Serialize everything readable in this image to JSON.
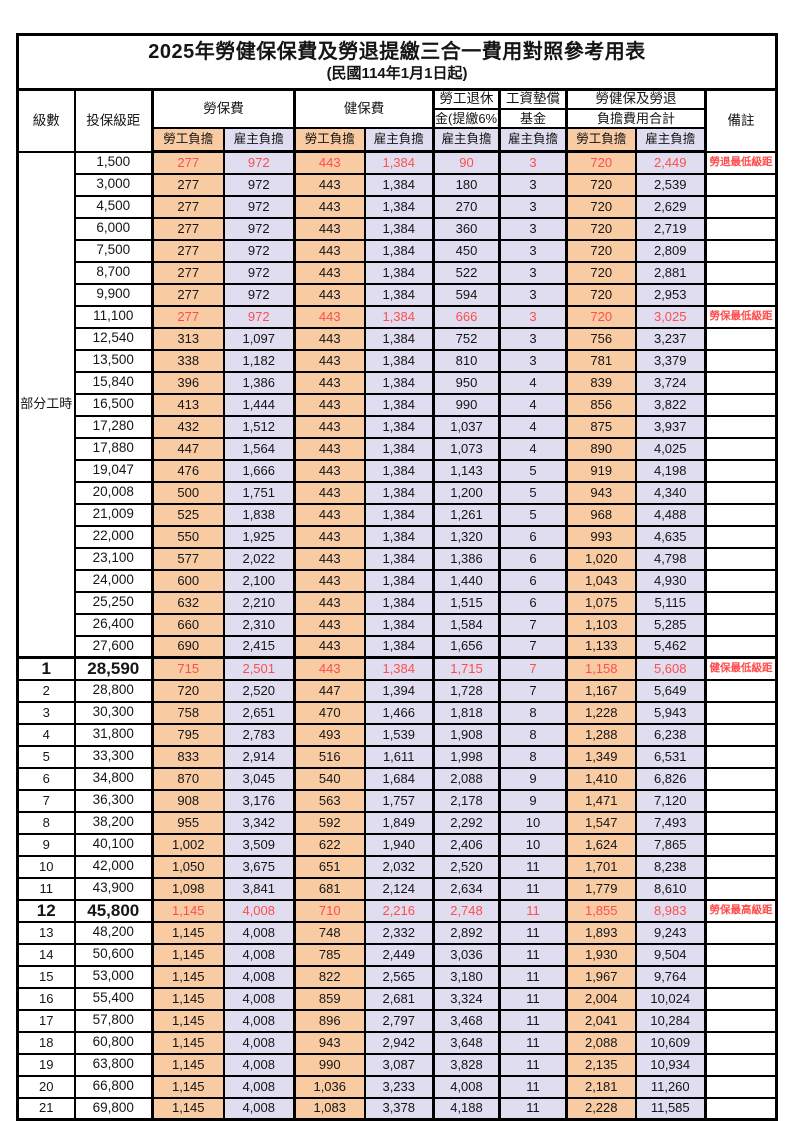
{
  "title": "2025年勞健保保費及勞退提繳三合一費用對照參考用表",
  "subtitle": "(民國114年1月1日起)",
  "header": {
    "level": "級數",
    "bracket": "投保級距",
    "labor_ins": "勞保費",
    "health_ins": "健保費",
    "pension_line1": "勞工退休",
    "pension_line2": "金(提繳6%)",
    "wage_fund_line1": "工資墊償",
    "wage_fund_line2": "基金",
    "total_line1": "勞健保及勞退",
    "total_line2": "負擔費用合計",
    "remark": "備註",
    "employee": "勞工負擔",
    "employer": "雇主負擔"
  },
  "part_time_label": "部分工時",
  "colors": {
    "employee_bg": "#F8CBA3",
    "employer_bg": "#DFDDEF",
    "highlight_red": "#FF4D4D",
    "border": "#000000"
  },
  "rows": [
    {
      "part": true,
      "level": "",
      "bracket": "1,500",
      "values": [
        "277",
        "972",
        "443",
        "1,384",
        "90",
        "3",
        "720",
        "2,449"
      ],
      "remark": "勞退最低級距",
      "red": true
    },
    {
      "part": true,
      "level": "",
      "bracket": "3,000",
      "values": [
        "277",
        "972",
        "443",
        "1,384",
        "180",
        "3",
        "720",
        "2,539"
      ],
      "remark": ""
    },
    {
      "part": true,
      "level": "",
      "bracket": "4,500",
      "values": [
        "277",
        "972",
        "443",
        "1,384",
        "270",
        "3",
        "720",
        "2,629"
      ],
      "remark": ""
    },
    {
      "part": true,
      "level": "",
      "bracket": "6,000",
      "values": [
        "277",
        "972",
        "443",
        "1,384",
        "360",
        "3",
        "720",
        "2,719"
      ],
      "remark": ""
    },
    {
      "part": true,
      "level": "",
      "bracket": "7,500",
      "values": [
        "277",
        "972",
        "443",
        "1,384",
        "450",
        "3",
        "720",
        "2,809"
      ],
      "remark": ""
    },
    {
      "part": true,
      "level": "",
      "bracket": "8,700",
      "values": [
        "277",
        "972",
        "443",
        "1,384",
        "522",
        "3",
        "720",
        "2,881"
      ],
      "remark": ""
    },
    {
      "part": true,
      "level": "",
      "bracket": "9,900",
      "values": [
        "277",
        "972",
        "443",
        "1,384",
        "594",
        "3",
        "720",
        "2,953"
      ],
      "remark": ""
    },
    {
      "part": true,
      "level": "",
      "bracket": "11,100",
      "values": [
        "277",
        "972",
        "443",
        "1,384",
        "666",
        "3",
        "720",
        "3,025"
      ],
      "remark": "勞保最低級距",
      "red": true
    },
    {
      "part": true,
      "level": "",
      "bracket": "12,540",
      "values": [
        "313",
        "1,097",
        "443",
        "1,384",
        "752",
        "3",
        "756",
        "3,237"
      ],
      "remark": ""
    },
    {
      "part": true,
      "level": "",
      "bracket": "13,500",
      "values": [
        "338",
        "1,182",
        "443",
        "1,384",
        "810",
        "3",
        "781",
        "3,379"
      ],
      "remark": ""
    },
    {
      "part": true,
      "level": "",
      "bracket": "15,840",
      "values": [
        "396",
        "1,386",
        "443",
        "1,384",
        "950",
        "4",
        "839",
        "3,724"
      ],
      "remark": ""
    },
    {
      "part": true,
      "level": "",
      "bracket": "16,500",
      "values": [
        "413",
        "1,444",
        "443",
        "1,384",
        "990",
        "4",
        "856",
        "3,822"
      ],
      "remark": ""
    },
    {
      "part": true,
      "level": "",
      "bracket": "17,280",
      "values": [
        "432",
        "1,512",
        "443",
        "1,384",
        "1,037",
        "4",
        "875",
        "3,937"
      ],
      "remark": ""
    },
    {
      "part": true,
      "level": "",
      "bracket": "17,880",
      "values": [
        "447",
        "1,564",
        "443",
        "1,384",
        "1,073",
        "4",
        "890",
        "4,025"
      ],
      "remark": ""
    },
    {
      "part": true,
      "level": "",
      "bracket": "19,047",
      "values": [
        "476",
        "1,666",
        "443",
        "1,384",
        "1,143",
        "5",
        "919",
        "4,198"
      ],
      "remark": ""
    },
    {
      "part": true,
      "level": "",
      "bracket": "20,008",
      "values": [
        "500",
        "1,751",
        "443",
        "1,384",
        "1,200",
        "5",
        "943",
        "4,340"
      ],
      "remark": ""
    },
    {
      "part": true,
      "level": "",
      "bracket": "21,009",
      "values": [
        "525",
        "1,838",
        "443",
        "1,384",
        "1,261",
        "5",
        "968",
        "4,488"
      ],
      "remark": ""
    },
    {
      "part": true,
      "level": "",
      "bracket": "22,000",
      "values": [
        "550",
        "1,925",
        "443",
        "1,384",
        "1,320",
        "6",
        "993",
        "4,635"
      ],
      "remark": ""
    },
    {
      "part": true,
      "level": "",
      "bracket": "23,100",
      "values": [
        "577",
        "2,022",
        "443",
        "1,384",
        "1,386",
        "6",
        "1,020",
        "4,798"
      ],
      "remark": ""
    },
    {
      "part": true,
      "level": "",
      "bracket": "24,000",
      "values": [
        "600",
        "2,100",
        "443",
        "1,384",
        "1,440",
        "6",
        "1,043",
        "4,930"
      ],
      "remark": ""
    },
    {
      "part": true,
      "level": "",
      "bracket": "25,250",
      "values": [
        "632",
        "2,210",
        "443",
        "1,384",
        "1,515",
        "6",
        "1,075",
        "5,115"
      ],
      "remark": ""
    },
    {
      "part": true,
      "level": "",
      "bracket": "26,400",
      "values": [
        "660",
        "2,310",
        "443",
        "1,384",
        "1,584",
        "7",
        "1,103",
        "5,285"
      ],
      "remark": ""
    },
    {
      "part": true,
      "level": "",
      "bracket": "27,600",
      "values": [
        "690",
        "2,415",
        "443",
        "1,384",
        "1,656",
        "7",
        "1,133",
        "5,462"
      ],
      "remark": ""
    },
    {
      "level": "1",
      "bracket": "28,590",
      "values": [
        "715",
        "2,501",
        "443",
        "1,384",
        "1,715",
        "7",
        "1,158",
        "5,608"
      ],
      "remark": "健保最低級距",
      "red": true,
      "big": true,
      "thick_top": true
    },
    {
      "level": "2",
      "bracket": "28,800",
      "values": [
        "720",
        "2,520",
        "447",
        "1,394",
        "1,728",
        "7",
        "1,167",
        "5,649"
      ],
      "remark": ""
    },
    {
      "level": "3",
      "bracket": "30,300",
      "values": [
        "758",
        "2,651",
        "470",
        "1,466",
        "1,818",
        "8",
        "1,228",
        "5,943"
      ],
      "remark": ""
    },
    {
      "level": "4",
      "bracket": "31,800",
      "values": [
        "795",
        "2,783",
        "493",
        "1,539",
        "1,908",
        "8",
        "1,288",
        "6,238"
      ],
      "remark": ""
    },
    {
      "level": "5",
      "bracket": "33,300",
      "values": [
        "833",
        "2,914",
        "516",
        "1,611",
        "1,998",
        "8",
        "1,349",
        "6,531"
      ],
      "remark": ""
    },
    {
      "level": "6",
      "bracket": "34,800",
      "values": [
        "870",
        "3,045",
        "540",
        "1,684",
        "2,088",
        "9",
        "1,410",
        "6,826"
      ],
      "remark": ""
    },
    {
      "level": "7",
      "bracket": "36,300",
      "values": [
        "908",
        "3,176",
        "563",
        "1,757",
        "2,178",
        "9",
        "1,471",
        "7,120"
      ],
      "remark": ""
    },
    {
      "level": "8",
      "bracket": "38,200",
      "values": [
        "955",
        "3,342",
        "592",
        "1,849",
        "2,292",
        "10",
        "1,547",
        "7,493"
      ],
      "remark": ""
    },
    {
      "level": "9",
      "bracket": "40,100",
      "values": [
        "1,002",
        "3,509",
        "622",
        "1,940",
        "2,406",
        "10",
        "1,624",
        "7,865"
      ],
      "remark": ""
    },
    {
      "level": "10",
      "bracket": "42,000",
      "values": [
        "1,050",
        "3,675",
        "651",
        "2,032",
        "2,520",
        "11",
        "1,701",
        "8,238"
      ],
      "remark": ""
    },
    {
      "level": "11",
      "bracket": "43,900",
      "values": [
        "1,098",
        "3,841",
        "681",
        "2,124",
        "2,634",
        "11",
        "1,779",
        "8,610"
      ],
      "remark": ""
    },
    {
      "level": "12",
      "bracket": "45,800",
      "values": [
        "1,145",
        "4,008",
        "710",
        "2,216",
        "2,748",
        "11",
        "1,855",
        "8,983"
      ],
      "remark": "勞保最高級距",
      "red": true,
      "big": true
    },
    {
      "level": "13",
      "bracket": "48,200",
      "values": [
        "1,145",
        "4,008",
        "748",
        "2,332",
        "2,892",
        "11",
        "1,893",
        "9,243"
      ],
      "remark": ""
    },
    {
      "level": "14",
      "bracket": "50,600",
      "values": [
        "1,145",
        "4,008",
        "785",
        "2,449",
        "3,036",
        "11",
        "1,930",
        "9,504"
      ],
      "remark": ""
    },
    {
      "level": "15",
      "bracket": "53,000",
      "values": [
        "1,145",
        "4,008",
        "822",
        "2,565",
        "3,180",
        "11",
        "1,967",
        "9,764"
      ],
      "remark": ""
    },
    {
      "level": "16",
      "bracket": "55,400",
      "values": [
        "1,145",
        "4,008",
        "859",
        "2,681",
        "3,324",
        "11",
        "2,004",
        "10,024"
      ],
      "remark": ""
    },
    {
      "level": "17",
      "bracket": "57,800",
      "values": [
        "1,145",
        "4,008",
        "896",
        "2,797",
        "3,468",
        "11",
        "2,041",
        "10,284"
      ],
      "remark": ""
    },
    {
      "level": "18",
      "bracket": "60,800",
      "values": [
        "1,145",
        "4,008",
        "943",
        "2,942",
        "3,648",
        "11",
        "2,088",
        "10,609"
      ],
      "remark": ""
    },
    {
      "level": "19",
      "bracket": "63,800",
      "values": [
        "1,145",
        "4,008",
        "990",
        "3,087",
        "3,828",
        "11",
        "2,135",
        "10,934"
      ],
      "remark": ""
    },
    {
      "level": "20",
      "bracket": "66,800",
      "values": [
        "1,145",
        "4,008",
        "1,036",
        "3,233",
        "4,008",
        "11",
        "2,181",
        "11,260"
      ],
      "remark": ""
    },
    {
      "level": "21",
      "bracket": "69,800",
      "values": [
        "1,145",
        "4,008",
        "1,083",
        "3,378",
        "4,188",
        "11",
        "2,228",
        "11,585"
      ],
      "remark": ""
    }
  ]
}
